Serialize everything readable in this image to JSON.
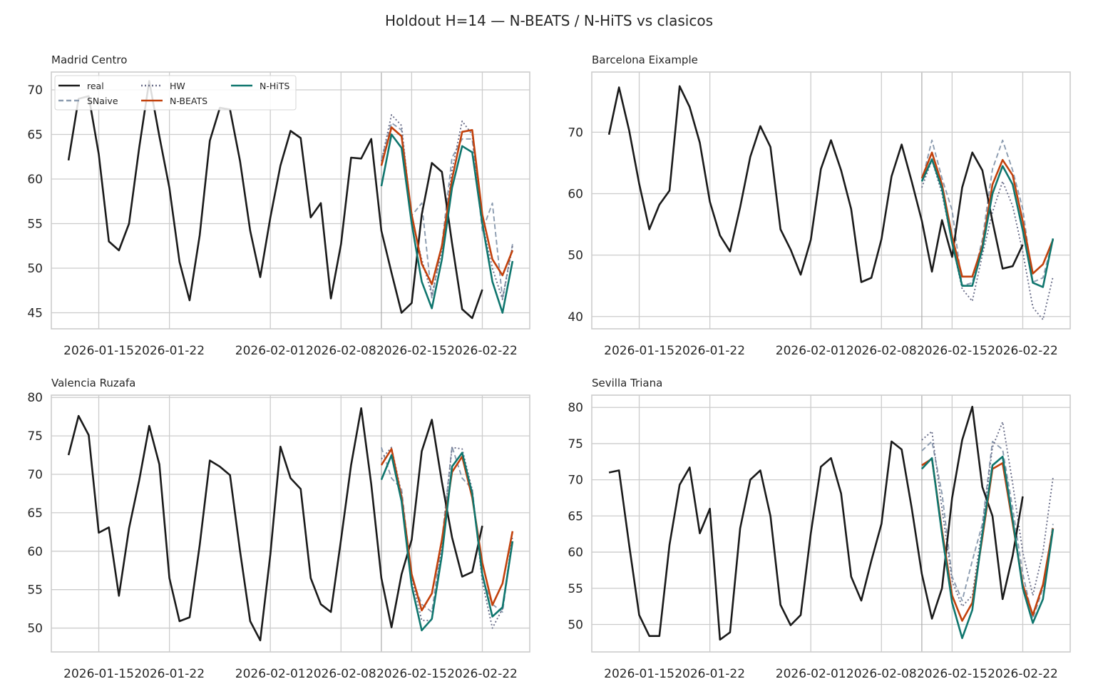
{
  "figure": {
    "title": "Holdout H=14 — N-BEATS / N-HiTS vs clasicos",
    "legend": [
      {
        "label": "real",
        "color": "#1a1a1a",
        "dash": ""
      },
      {
        "label": "SNaive",
        "color": "#8c9cb0",
        "dash": "7,4"
      },
      {
        "label": "HW",
        "color": "#6b6f8a",
        "dash": "2,3"
      },
      {
        "label": "N-BEATS",
        "color": "#c2410c",
        "dash": ""
      },
      {
        "label": "N-HiTS",
        "color": "#0f766e",
        "dash": ""
      }
    ]
  },
  "chart_data": [
    {
      "type": "line",
      "title": "Madrid Centro",
      "x_dates": [
        "2026-01-12",
        "2026-01-13",
        "2026-01-14",
        "2026-01-15",
        "2026-01-16",
        "2026-01-17",
        "2026-01-18",
        "2026-01-19",
        "2026-01-20",
        "2026-01-21",
        "2026-01-22",
        "2026-01-23",
        "2026-01-24",
        "2026-01-25",
        "2026-01-26",
        "2026-01-27",
        "2026-01-28",
        "2026-01-29",
        "2026-01-30",
        "2026-01-31",
        "2026-02-01",
        "2026-02-02",
        "2026-02-03",
        "2026-02-04",
        "2026-02-05",
        "2026-02-06",
        "2026-02-07",
        "2026-02-08",
        "2026-02-09",
        "2026-02-10",
        "2026-02-11",
        "2026-02-12",
        "2026-02-13",
        "2026-02-14",
        "2026-02-15",
        "2026-02-16",
        "2026-02-17",
        "2026-02-18",
        "2026-02-19",
        "2026-02-20",
        "2026-02-21",
        "2026-02-22",
        "2026-02-23",
        "2026-02-24",
        "2026-02-25"
      ],
      "xticks": [
        "2026-01-15",
        "2026-01-22",
        "2026-02-01",
        "2026-02-08",
        "2026-02-15",
        "2026-02-22"
      ],
      "holdout_start": "2026-02-12",
      "ylim": [
        43.2,
        72.0
      ],
      "yticks": [
        45,
        50,
        55,
        60,
        65,
        70
      ],
      "grid": true,
      "legend_position": "top-left",
      "series": [
        {
          "name": "real",
          "start": "2026-01-12",
          "values": [
            62.1,
            69.0,
            69.3,
            62.8,
            53.0,
            52.0,
            55.0,
            63.5,
            71.0,
            64.8,
            59.0,
            50.7,
            46.4,
            53.7,
            64.3,
            68.0,
            67.8,
            62.0,
            54.2,
            49.0,
            55.7,
            61.5,
            65.4,
            64.6,
            55.7,
            57.3,
            46.6,
            52.7,
            62.4,
            62.3,
            64.5,
            54.2,
            49.5,
            45.0,
            46.1,
            56.0,
            61.8,
            60.8,
            52.8,
            45.4,
            44.4,
            47.6
          ]
        },
        {
          "name": "SNaive",
          "start": "2026-02-12",
          "values": [
            62.2,
            66.3,
            65.5,
            55.9,
            57.3,
            46.6,
            52.7,
            62.4,
            64.5,
            64.5,
            54.2,
            57.3,
            46.6,
            52.7
          ]
        },
        {
          "name": "HW",
          "start": "2026-02-12",
          "values": [
            62.0,
            67.2,
            66.0,
            55.5,
            51.0,
            47.0,
            52.0,
            61.0,
            66.5,
            65.0,
            55.0,
            50.0,
            46.5,
            52.5
          ]
        },
        {
          "name": "N-BEATS",
          "start": "2026-02-12",
          "values": [
            61.5,
            65.8,
            64.8,
            56.0,
            50.5,
            48.2,
            52.5,
            60.0,
            65.3,
            65.5,
            56.0,
            51.0,
            49.2,
            52.0
          ]
        },
        {
          "name": "N-HiTS",
          "start": "2026-02-12",
          "values": [
            59.2,
            65.0,
            63.5,
            55.0,
            48.5,
            45.5,
            51.0,
            59.0,
            63.7,
            63.0,
            55.0,
            48.5,
            45.0,
            50.8
          ]
        }
      ]
    },
    {
      "type": "line",
      "title": "Barcelona Eixample",
      "x_dates": [
        "2026-01-12",
        "2026-01-13",
        "2026-01-14",
        "2026-01-15",
        "2026-01-16",
        "2026-01-17",
        "2026-01-18",
        "2026-01-19",
        "2026-01-20",
        "2026-01-21",
        "2026-01-22",
        "2026-01-23",
        "2026-01-24",
        "2026-01-25",
        "2026-01-26",
        "2026-01-27",
        "2026-01-28",
        "2026-01-29",
        "2026-01-30",
        "2026-01-31",
        "2026-02-01",
        "2026-02-02",
        "2026-02-03",
        "2026-02-04",
        "2026-02-05",
        "2026-02-06",
        "2026-02-07",
        "2026-02-08",
        "2026-02-09",
        "2026-02-10",
        "2026-02-11",
        "2026-02-12",
        "2026-02-13",
        "2026-02-14",
        "2026-02-15",
        "2026-02-16",
        "2026-02-17",
        "2026-02-18",
        "2026-02-19",
        "2026-02-20",
        "2026-02-21",
        "2026-02-22",
        "2026-02-23",
        "2026-02-24",
        "2026-02-25"
      ],
      "xticks": [
        "2026-01-15",
        "2026-01-22",
        "2026-02-01",
        "2026-02-08",
        "2026-02-15",
        "2026-02-22"
      ],
      "holdout_start": "2026-02-12",
      "ylim": [
        38.0,
        79.8
      ],
      "yticks": [
        40,
        50,
        60,
        70
      ],
      "grid": true,
      "series": [
        {
          "name": "real",
          "start": "2026-01-12",
          "values": [
            69.6,
            77.3,
            70.3,
            61.6,
            54.2,
            58.2,
            60.5,
            77.5,
            74.1,
            68.3,
            58.7,
            53.2,
            50.6,
            57.8,
            66.0,
            71.0,
            67.6,
            54.2,
            50.9,
            46.8,
            52.5,
            64.0,
            68.7,
            63.8,
            57.5,
            45.6,
            46.3,
            52.6,
            62.8,
            68.0,
            62.0,
            55.6,
            47.3,
            55.7,
            49.7,
            61.0,
            66.7,
            63.8,
            55.5,
            47.8,
            48.2,
            51.7
          ]
        },
        {
          "name": "SNaive",
          "start": "2026-02-12",
          "values": [
            62.0,
            68.7,
            62.5,
            57.3,
            45.0,
            45.5,
            52.6,
            64.0,
            68.7,
            63.8,
            57.5,
            45.6,
            46.3,
            52.6
          ]
        },
        {
          "name": "HW",
          "start": "2026-02-12",
          "values": [
            61.0,
            65.5,
            60.0,
            52.0,
            44.5,
            42.5,
            50.0,
            57.0,
            62.0,
            58.0,
            50.5,
            41.5,
            39.5,
            46.5
          ]
        },
        {
          "name": "N-BEATS",
          "start": "2026-02-12",
          "values": [
            62.5,
            66.7,
            61.5,
            53.0,
            46.5,
            46.5,
            51.5,
            61.5,
            65.5,
            63.0,
            55.5,
            47.0,
            48.5,
            52.5
          ]
        },
        {
          "name": "N-HiTS",
          "start": "2026-02-12",
          "values": [
            62.0,
            65.6,
            60.8,
            52.0,
            45.0,
            45.0,
            51.0,
            60.0,
            64.5,
            61.5,
            54.0,
            45.5,
            44.8,
            52.7
          ]
        }
      ]
    },
    {
      "type": "line",
      "title": "Valencia Ruzafa",
      "x_dates": [
        "2026-01-12",
        "2026-01-13",
        "2026-01-14",
        "2026-01-15",
        "2026-01-16",
        "2026-01-17",
        "2026-01-18",
        "2026-01-19",
        "2026-01-20",
        "2026-01-21",
        "2026-01-22",
        "2026-01-23",
        "2026-01-24",
        "2026-01-25",
        "2026-01-26",
        "2026-01-27",
        "2026-01-28",
        "2026-01-29",
        "2026-01-30",
        "2026-01-31",
        "2026-02-01",
        "2026-02-02",
        "2026-02-03",
        "2026-02-04",
        "2026-02-05",
        "2026-02-06",
        "2026-02-07",
        "2026-02-08",
        "2026-02-09",
        "2026-02-10",
        "2026-02-11",
        "2026-02-12",
        "2026-02-13",
        "2026-02-14",
        "2026-02-15",
        "2026-02-16",
        "2026-02-17",
        "2026-02-18",
        "2026-02-19",
        "2026-02-20",
        "2026-02-21",
        "2026-02-22",
        "2026-02-23",
        "2026-02-24",
        "2026-02-25"
      ],
      "xticks": [
        "2026-01-15",
        "2026-01-22",
        "2026-02-01",
        "2026-02-08",
        "2026-02-15",
        "2026-02-22"
      ],
      "holdout_start": "2026-02-12",
      "ylim": [
        46.9,
        80.3
      ],
      "yticks": [
        50,
        55,
        60,
        65,
        70,
        75,
        80
      ],
      "grid": true,
      "series": [
        {
          "name": "real",
          "start": "2026-01-12",
          "values": [
            72.5,
            77.6,
            75.1,
            62.4,
            63.1,
            54.2,
            63.0,
            69.2,
            76.3,
            71.3,
            56.5,
            50.9,
            51.4,
            60.8,
            71.8,
            71.0,
            69.9,
            60.0,
            50.9,
            48.4,
            59.6,
            73.6,
            69.5,
            68.1,
            56.5,
            53.1,
            52.1,
            61.5,
            71.2,
            78.6,
            68.7,
            56.5,
            50.1,
            57.0,
            61.5,
            73.0,
            77.1,
            69.0,
            61.8,
            56.7,
            57.3,
            63.3
          ]
        },
        {
          "name": "SNaive",
          "start": "2026-02-12",
          "values": [
            73.5,
            69.5,
            68.1,
            56.5,
            53.1,
            52.1,
            61.5,
            73.6,
            69.5,
            68.1,
            56.5,
            53.1,
            52.1,
            61.5
          ]
        },
        {
          "name": "HW",
          "start": "2026-02-12",
          "values": [
            72.0,
            73.5,
            67.5,
            56.5,
            51.0,
            51.0,
            61.0,
            73.5,
            73.3,
            68.0,
            56.0,
            50.0,
            52.5,
            62.0
          ]
        },
        {
          "name": "N-BEATS",
          "start": "2026-02-12",
          "values": [
            71.2,
            73.3,
            67.0,
            57.0,
            52.3,
            54.5,
            61.5,
            70.3,
            72.3,
            67.0,
            58.5,
            53.0,
            55.8,
            62.6
          ]
        },
        {
          "name": "N-HiTS",
          "start": "2026-02-12",
          "values": [
            69.3,
            72.5,
            66.5,
            55.5,
            49.7,
            51.2,
            59.5,
            71.0,
            72.8,
            67.5,
            57.0,
            51.5,
            52.7,
            61.3
          ]
        }
      ]
    },
    {
      "type": "line",
      "title": "Sevilla Triana",
      "x_dates": [
        "2026-01-12",
        "2026-01-13",
        "2026-01-14",
        "2026-01-15",
        "2026-01-16",
        "2026-01-17",
        "2026-01-18",
        "2026-01-19",
        "2026-01-20",
        "2026-01-21",
        "2026-01-22",
        "2026-01-23",
        "2026-01-24",
        "2026-01-25",
        "2026-01-26",
        "2026-01-27",
        "2026-01-28",
        "2026-01-29",
        "2026-01-30",
        "2026-01-31",
        "2026-02-01",
        "2026-02-02",
        "2026-02-03",
        "2026-02-04",
        "2026-02-05",
        "2026-02-06",
        "2026-02-07",
        "2026-02-08",
        "2026-02-09",
        "2026-02-10",
        "2026-02-11",
        "2026-02-12",
        "2026-02-13",
        "2026-02-14",
        "2026-02-15",
        "2026-02-16",
        "2026-02-17",
        "2026-02-18",
        "2026-02-19",
        "2026-02-20",
        "2026-02-21",
        "2026-02-22",
        "2026-02-23",
        "2026-02-24",
        "2026-02-25"
      ],
      "xticks": [
        "2026-01-15",
        "2026-01-22",
        "2026-02-01",
        "2026-02-08",
        "2026-02-15",
        "2026-02-22"
      ],
      "holdout_start": "2026-02-12",
      "ylim": [
        46.2,
        81.7
      ],
      "yticks": [
        50,
        55,
        60,
        65,
        70,
        75,
        80
      ],
      "grid": true,
      "series": [
        {
          "name": "real",
          "start": "2026-01-12",
          "values": [
            71.0,
            71.3,
            61.0,
            51.3,
            48.4,
            48.4,
            61.0,
            69.3,
            71.7,
            62.6,
            66.0,
            47.9,
            48.9,
            63.3,
            70.0,
            71.3,
            65.0,
            52.7,
            49.9,
            51.3,
            62.6,
            71.8,
            73.0,
            68.1,
            56.6,
            53.3,
            58.8,
            63.9,
            75.3,
            74.2,
            66.1,
            57.0,
            50.8,
            55.0,
            67.5,
            75.5,
            80.1,
            69.0,
            65.0,
            53.5,
            59.5,
            67.7
          ]
        },
        {
          "name": "SNaive",
          "start": "2026-02-12",
          "values": [
            74.0,
            75.3,
            68.1,
            56.6,
            53.3,
            58.8,
            63.9,
            75.3,
            74.2,
            66.1,
            57.0,
            50.8,
            55.0,
            63.9
          ]
        },
        {
          "name": "HW",
          "start": "2026-02-12",
          "values": [
            75.5,
            76.7,
            66.0,
            56.0,
            52.5,
            54.0,
            63.5,
            74.5,
            78.0,
            69.5,
            60.0,
            54.0,
            60.0,
            70.3
          ]
        },
        {
          "name": "N-BEATS",
          "start": "2026-02-12",
          "values": [
            72.0,
            72.9,
            63.0,
            54.0,
            50.5,
            53.0,
            62.0,
            71.5,
            72.3,
            64.0,
            55.5,
            51.3,
            55.5,
            63.3
          ]
        },
        {
          "name": "N-HiTS",
          "start": "2026-02-12",
          "values": [
            71.5,
            73.0,
            62.5,
            53.0,
            48.1,
            52.0,
            62.5,
            72.0,
            73.2,
            64.5,
            55.0,
            50.2,
            53.5,
            63.2
          ]
        }
      ]
    }
  ]
}
